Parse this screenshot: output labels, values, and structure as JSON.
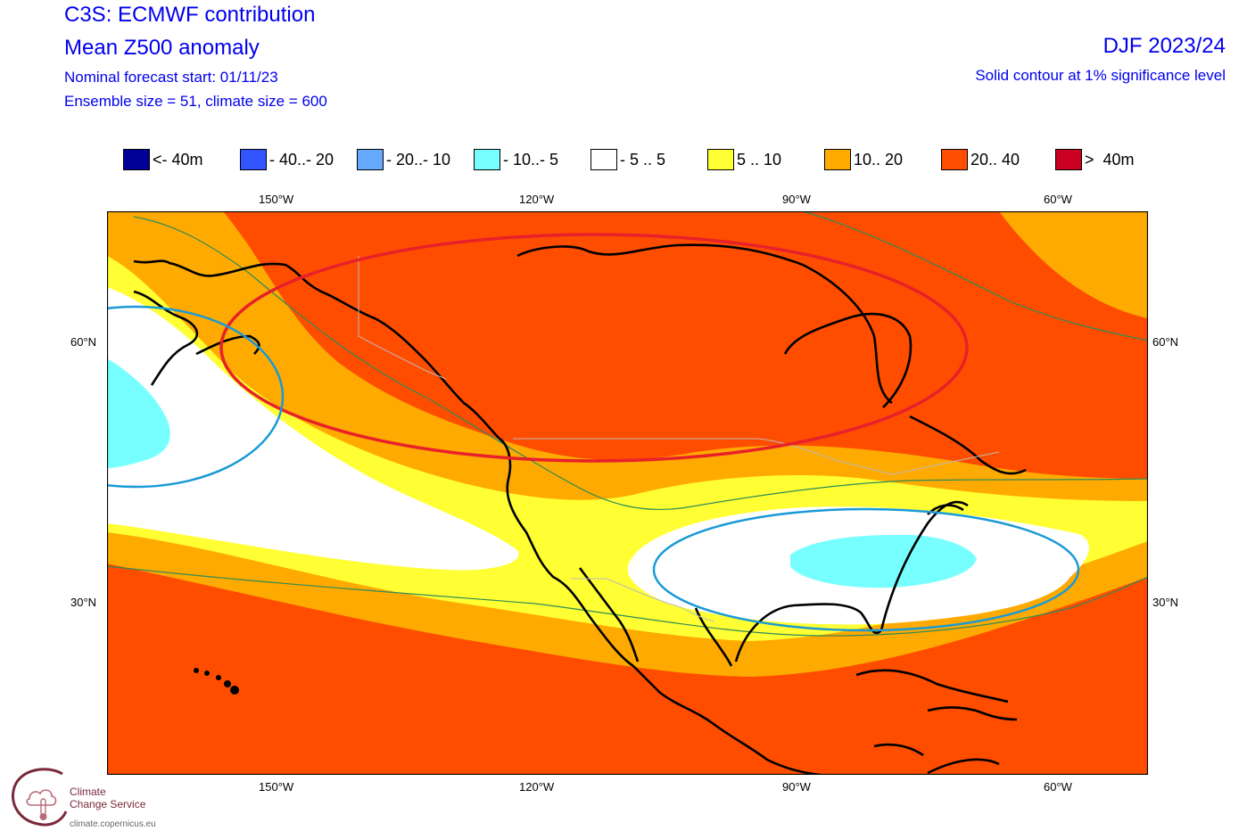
{
  "header": {
    "title1": "C3S: ECMWF contribution",
    "title2": "Mean Z500 anomaly",
    "forecast_start": "Nominal forecast start: 01/11/23",
    "ensemble": "Ensemble size = 51, climate size = 600",
    "season": "DJF 2023/24",
    "significance": "Solid contour at 1% significance level"
  },
  "legend": [
    {
      "label": "<- 40m",
      "color": "#000099"
    },
    {
      "label": "- 40..- 20",
      "color": "#3355ff"
    },
    {
      "label": "- 20..- 10",
      "color": "#66aaff"
    },
    {
      "label": "- 10..- 5",
      "color": "#77ffff"
    },
    {
      "label": "- 5 .. 5",
      "color": "#ffffff"
    },
    {
      "label": "5 .. 10",
      "color": "#ffff33"
    },
    {
      "label": "10.. 20",
      "color": "#ffaa00"
    },
    {
      "label": "20.. 40",
      "color": "#ff4d00"
    },
    {
      "label": ">  40m",
      "color": "#cc0022"
    }
  ],
  "axes": {
    "lon_ticks": [
      "150°W",
      "120°W",
      "90°W",
      "60°W"
    ],
    "lat_ticks": [
      "60°N",
      "30°N"
    ]
  },
  "map": {
    "colors": {
      "strong_positive": "#ff4d00",
      "positive": "#ffaa00",
      "weak_positive": "#ffff33",
      "neutral": "#ffffff",
      "weak_negative": "#77ffff",
      "significance_line": "#2e8b57",
      "highlight_positive": "#e8202a",
      "highlight_negative": "#1a9ad6",
      "coastline": "#000000",
      "borders": "#bbbbbb"
    },
    "annotations": [
      {
        "name": "positive-anomaly-ellipse",
        "color": "#e8202a"
      },
      {
        "name": "negative-anomaly-ellipse-pacific",
        "color": "#1a9ad6"
      },
      {
        "name": "negative-anomaly-ellipse-southeast-us",
        "color": "#1a9ad6"
      }
    ]
  },
  "logo": {
    "name_line1": "Climate",
    "name_line2": "Change Service",
    "url": "climate.copernicus.eu"
  }
}
